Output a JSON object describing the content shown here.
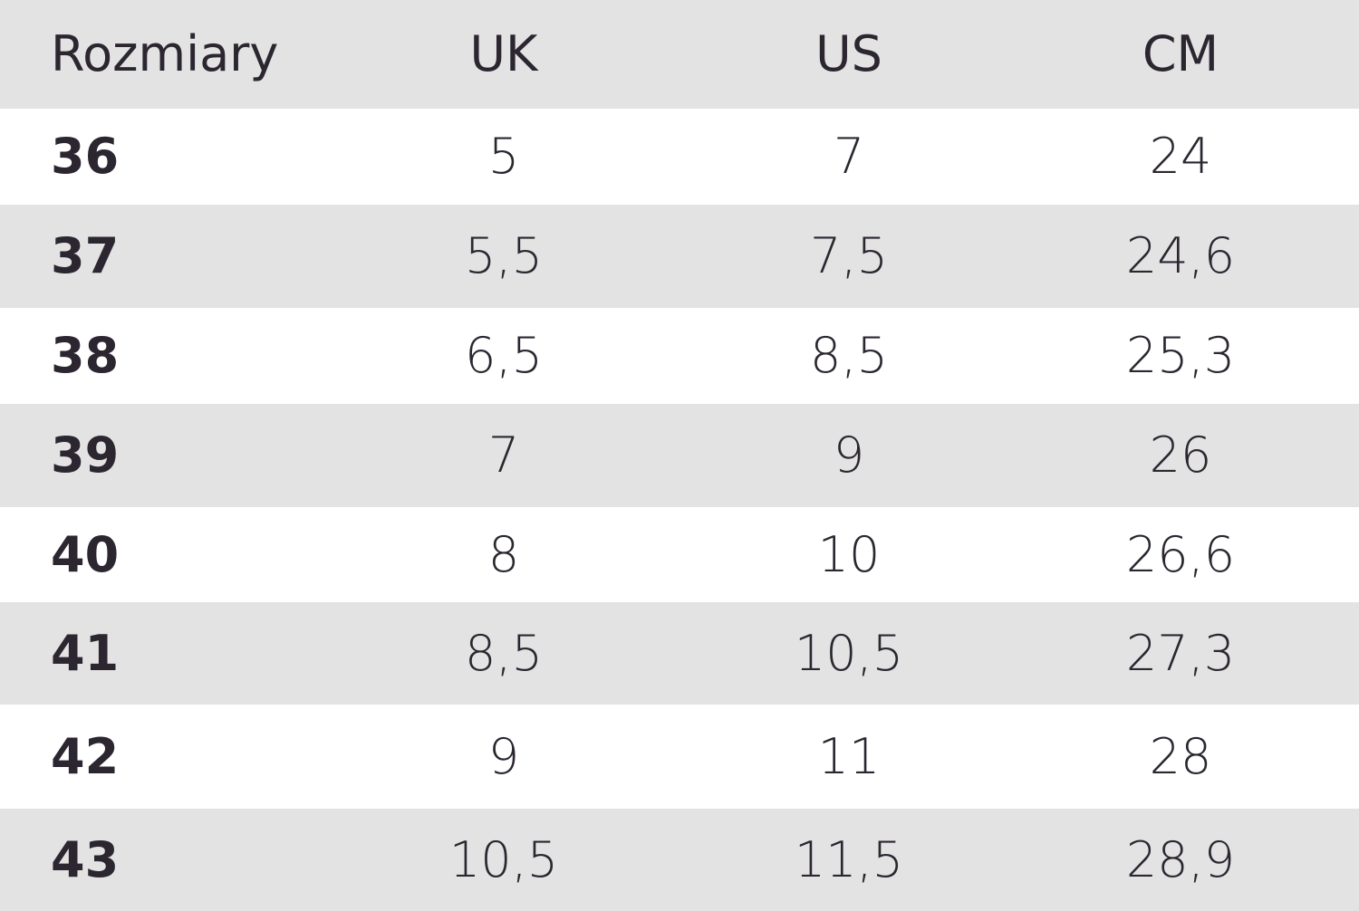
{
  "header": [
    "Rozmiary",
    "UK",
    "US",
    "CM"
  ],
  "rows": [
    [
      "36",
      "5",
      "7",
      "24"
    ],
    [
      "37",
      "5,5",
      "7,5",
      "24,6"
    ],
    [
      "38",
      "6,5",
      "8,5",
      "25,3"
    ],
    [
      "39",
      "7",
      "9",
      "26"
    ],
    [
      "40",
      "8",
      "10",
      "26,6"
    ],
    [
      "41",
      "8,5",
      "10,5",
      "27,3"
    ],
    [
      "42",
      "9",
      "11",
      "28"
    ],
    [
      "43",
      "10,5",
      "11,5",
      "28,9"
    ]
  ],
  "colors": {
    "stripe": "#e3e3e3",
    "text": "#2b2630"
  }
}
